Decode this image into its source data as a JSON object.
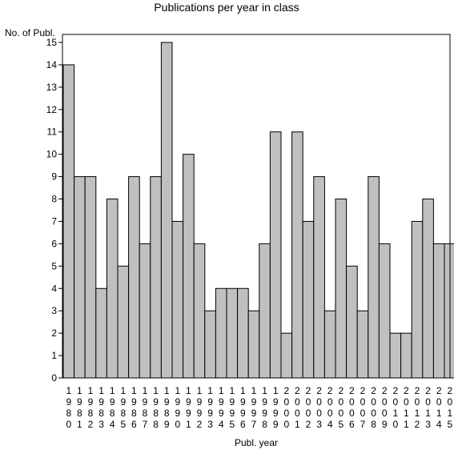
{
  "chart_data": {
    "type": "bar",
    "title": "Publications per year in class",
    "ylabel": "No. of Publ.",
    "xlabel": "Publ. year",
    "ylim": [
      0,
      15
    ],
    "y_ticks": [
      "0",
      "1",
      "2",
      "3",
      "4",
      "5",
      "6",
      "7",
      "8",
      "9",
      "10",
      "11",
      "12",
      "13",
      "14",
      "15"
    ],
    "categories": [
      "1980",
      "1981",
      "1982",
      "1983",
      "1984",
      "1985",
      "1986",
      "1987",
      "1988",
      "1989",
      "1990",
      "1991",
      "1992",
      "1993",
      "1994",
      "1995",
      "1996",
      "1997",
      "1998",
      "1999",
      "2000",
      "2001",
      "2002",
      "2003",
      "2004",
      "2005",
      "2006",
      "2007",
      "2008",
      "2009",
      "2010",
      "2011",
      "2012",
      "2013",
      "2014",
      "2015"
    ],
    "values": [
      14,
      9,
      9,
      4,
      8,
      5,
      9,
      6,
      9,
      15,
      7,
      10,
      6,
      3,
      4,
      4,
      4,
      3,
      6,
      11,
      2,
      11,
      7,
      9,
      3,
      8,
      5,
      3,
      9,
      6,
      2,
      2,
      7,
      8,
      6,
      6
    ],
    "grid": false,
    "legend": "none",
    "colors": {
      "bar_fill": "#c0c0c0",
      "bar_stroke": "#000000",
      "axis": "#000000",
      "background": "#ffffff"
    }
  }
}
